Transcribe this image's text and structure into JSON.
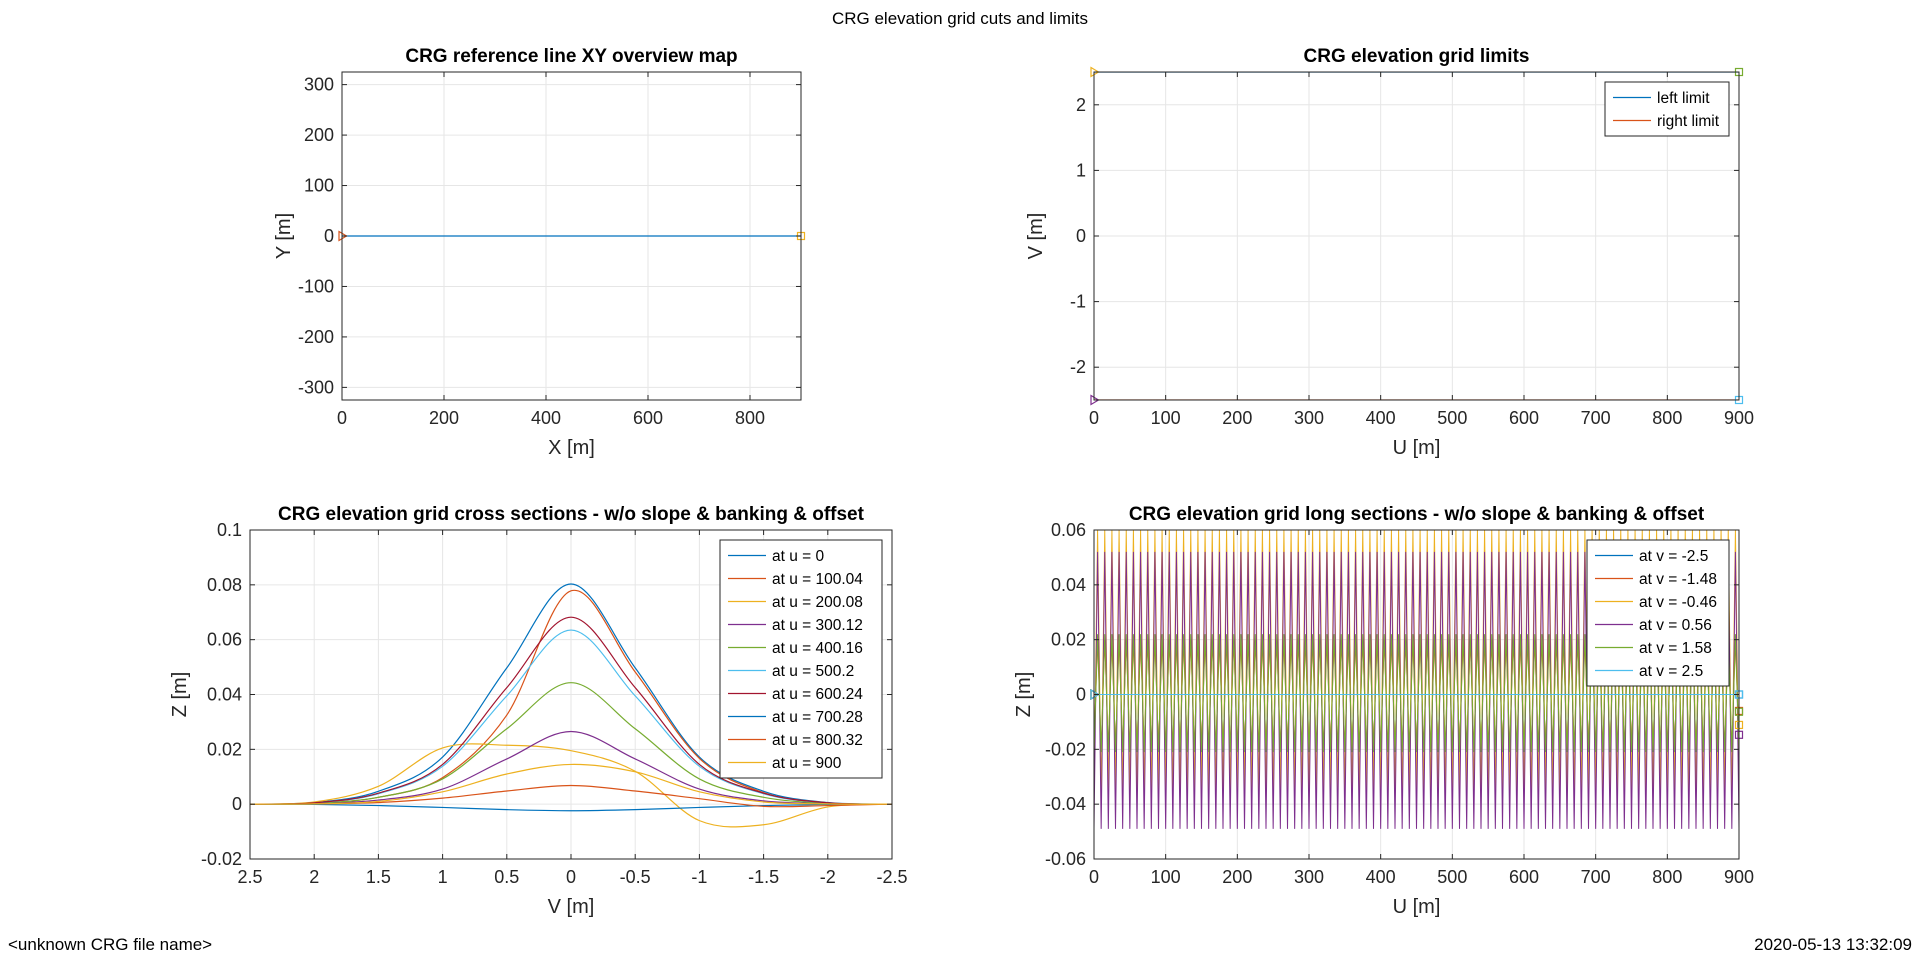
{
  "figure": {
    "title": "CRG elevation grid cuts and limits",
    "footer_left": "<unknown CRG file name>",
    "footer_right": "2020-05-13 13:32:09"
  },
  "chart_data": [
    {
      "id": "xy",
      "type": "line",
      "title": "CRG reference line XY overview map",
      "xlabel": "X [m]",
      "ylabel": "Y [m]",
      "xlim": [
        0,
        900
      ],
      "ylim": [
        -325,
        325
      ],
      "xticks": [
        0,
        200,
        400,
        600,
        800
      ],
      "yticks": [
        -300,
        -200,
        -100,
        0,
        100,
        200,
        300
      ],
      "grid": true,
      "series": [
        {
          "color": "#0072BD",
          "x": [
            0,
            900
          ],
          "y": [
            0,
            0
          ]
        }
      ],
      "markers": [
        {
          "x": 0,
          "y": 0,
          "shape": "triangle-right",
          "color": "#D95319"
        },
        {
          "x": 900,
          "y": 0,
          "shape": "square",
          "color": "#EDB120"
        }
      ]
    },
    {
      "id": "limits",
      "type": "line",
      "title": "CRG elevation grid limits",
      "xlabel": "U [m]",
      "ylabel": "V [m]",
      "xlim": [
        0,
        900
      ],
      "ylim": [
        -2.5,
        2.5
      ],
      "xticks": [
        0,
        100,
        200,
        300,
        400,
        500,
        600,
        700,
        800,
        900
      ],
      "yticks": [
        -2,
        -1,
        0,
        1,
        2
      ],
      "grid": true,
      "legend": "top-right",
      "series": [
        {
          "name": "left limit",
          "color": "#0072BD",
          "x": [
            0,
            900
          ],
          "y": [
            2.5,
            2.5
          ]
        },
        {
          "name": "right limit",
          "color": "#D95319",
          "x": [
            0,
            900
          ],
          "y": [
            -2.5,
            -2.5
          ]
        }
      ],
      "markers": [
        {
          "x": 0,
          "y": 2.5,
          "shape": "triangle-right",
          "color": "#EDB120"
        },
        {
          "x": 900,
          "y": 2.5,
          "shape": "square",
          "color": "#77AC30"
        },
        {
          "x": 0,
          "y": -2.5,
          "shape": "triangle-right",
          "color": "#7E2F8E"
        },
        {
          "x": 900,
          "y": -2.5,
          "shape": "square",
          "color": "#4DBEEE"
        }
      ]
    },
    {
      "id": "cross",
      "type": "line",
      "title": "CRG elevation grid cross sections - w/o slope & banking & offset",
      "xlabel": "V [m]",
      "ylabel": "Z [m]",
      "xlim": [
        2.5,
        -2.5
      ],
      "ylim": [
        -0.02,
        0.1
      ],
      "xticks": [
        2.5,
        2,
        1.5,
        1,
        0.5,
        0,
        -0.5,
        -1,
        -1.5,
        -2,
        -2.5
      ],
      "xticklabels": [
        "2.5",
        "2",
        "1.5",
        "1",
        "0.5",
        "0",
        "-0.5",
        "-1",
        "-1.5",
        "-2",
        "-2.5"
      ],
      "yticks": [
        -0.02,
        0,
        0.02,
        0.04,
        0.06,
        0.08,
        0.1
      ],
      "yticklabels": [
        "-0.02",
        "0",
        "0.02",
        "0.04",
        "0.06",
        "0.08",
        "0.1"
      ],
      "grid": true,
      "legend": "top-right",
      "series": [
        {
          "name": "at u = 0",
          "color": "#0072BD",
          "x": [
            2.5,
            2,
            1.5,
            1,
            0.5,
            0,
            -0.5,
            -1,
            -1.5,
            -2,
            -2.5
          ],
          "y": [
            0,
            0.0006,
            0.0047,
            0.0172,
            0.0497,
            0.0803,
            0.0497,
            0.0172,
            0.0047,
            0.0006,
            0
          ]
        },
        {
          "name": "at u = 100.04",
          "color": "#D95319",
          "x": [
            2.5,
            2,
            1.5,
            1,
            0.5,
            0,
            -0.5,
            -1,
            -1.5,
            -2,
            -2.5
          ],
          "y": [
            0,
            0.0004,
            0.0025,
            0.0097,
            0.0325,
            0.0778,
            0.0482,
            0.0167,
            0.0042,
            0.0005,
            0
          ]
        },
        {
          "name": "at u = 200.08",
          "color": "#EDB120",
          "x": [
            2.5,
            2,
            1.5,
            1,
            0.5,
            0,
            -0.5,
            -1,
            -1.5,
            -2,
            -2.5
          ],
          "y": [
            0,
            0.0008,
            0.0065,
            0.0205,
            0.0215,
            0.0195,
            0.012,
            -0.006,
            -0.0075,
            -0.001,
            0
          ]
        },
        {
          "name": "at u = 300.12",
          "color": "#7E2F8E",
          "x": [
            2.5,
            2,
            1.5,
            1,
            0.5,
            0,
            -0.5,
            -1,
            -1.5,
            -2,
            -2.5
          ],
          "y": [
            0,
            0.0002,
            0.0015,
            0.0055,
            0.0165,
            0.0265,
            0.0165,
            0.0055,
            0.0012,
            0.0002,
            0
          ]
        },
        {
          "name": "at u = 400.16",
          "color": "#77AC30",
          "x": [
            2.5,
            2,
            1.5,
            1,
            0.5,
            0,
            -0.5,
            -1,
            -1.5,
            -2,
            -2.5
          ],
          "y": [
            0,
            0.0003,
            0.0025,
            0.0092,
            0.0275,
            0.0443,
            0.0275,
            0.0092,
            0.0025,
            0.0003,
            0
          ]
        },
        {
          "name": "at u = 500.2",
          "color": "#4DBEEE",
          "x": [
            2.5,
            2,
            1.5,
            1,
            0.5,
            0,
            -0.5,
            -1,
            -1.5,
            -2,
            -2.5
          ],
          "y": [
            0,
            0.0004,
            0.0038,
            0.0138,
            0.0395,
            0.0635,
            0.0395,
            0.0138,
            0.0038,
            0.0004,
            0
          ]
        },
        {
          "name": "at u = 600.24",
          "color": "#A2142F",
          "x": [
            2.5,
            2,
            1.5,
            1,
            0.5,
            0,
            -0.5,
            -1,
            -1.5,
            -2,
            -2.5
          ],
          "y": [
            0,
            0.0005,
            0.004,
            0.0145,
            0.0425,
            0.0682,
            0.0425,
            0.0145,
            0.004,
            0.0005,
            0
          ]
        },
        {
          "name": "at u = 700.28",
          "color": "#0072BD",
          "x": [
            2.5,
            2,
            1.5,
            1,
            0.5,
            0,
            -0.5,
            -1,
            -1.5,
            -2,
            -2.5
          ],
          "y": [
            0,
            -0.0001,
            -0.0005,
            -0.0012,
            -0.002,
            -0.0024,
            -0.002,
            -0.0012,
            -0.0005,
            -0.0001,
            0
          ]
        },
        {
          "name": "at u = 800.32",
          "color": "#D95319",
          "x": [
            2.5,
            2,
            1.5,
            1,
            0.5,
            0,
            -0.5,
            -1,
            -1.5,
            -2,
            -2.5
          ],
          "y": [
            0,
            0.0001,
            0.0006,
            0.0022,
            0.0048,
            0.0068,
            0.0048,
            0.002,
            -0.0008,
            -0.0005,
            0
          ]
        },
        {
          "name": "at u = 900",
          "color": "#EDB120",
          "x": [
            2.5,
            2,
            1.5,
            1,
            0.5,
            0,
            -0.5,
            -1,
            -1.5,
            -2,
            -2.5
          ],
          "y": [
            0,
            0.0001,
            0.001,
            0.0045,
            0.011,
            0.0145,
            0.0118,
            0.0045,
            0.0008,
            0.0001,
            0
          ]
        }
      ]
    },
    {
      "id": "long",
      "type": "line",
      "title": "CRG elevation grid long sections - w/o slope & banking & offset",
      "xlabel": "U [m]",
      "ylabel": "Z [m]",
      "xlim": [
        0,
        900
      ],
      "ylim": [
        -0.06,
        0.06
      ],
      "xticks": [
        0,
        100,
        200,
        300,
        400,
        500,
        600,
        700,
        800,
        900
      ],
      "yticks": [
        -0.06,
        -0.04,
        -0.02,
        0,
        0.02,
        0.04,
        0.06
      ],
      "yticklabels": [
        "-0.06",
        "-0.04",
        "-0.02",
        "0",
        "0.02",
        "0.04",
        "0.06"
      ],
      "grid": true,
      "legend": "top-right",
      "oscillation_period": 10,
      "series": [
        {
          "name": "at v = -2.5",
          "color": "#0072BD",
          "amplitude": [
            0,
            0
          ]
        },
        {
          "name": "at v = -1.48",
          "color": "#D95319",
          "amplitude": [
            0.02,
            -0.02
          ]
        },
        {
          "name": "at v = -0.46",
          "color": "#EDB120",
          "amplitude": [
            0.06,
            -0.037
          ]
        },
        {
          "name": "at v = 0.56",
          "color": "#7E2F8E",
          "amplitude": [
            0.052,
            -0.049
          ]
        },
        {
          "name": "at v = 1.58",
          "color": "#77AC30",
          "amplitude": [
            0.022,
            -0.021
          ]
        },
        {
          "name": "at v = 2.5",
          "color": "#4DBEEE",
          "amplitude": [
            0,
            0
          ]
        }
      ]
    }
  ]
}
